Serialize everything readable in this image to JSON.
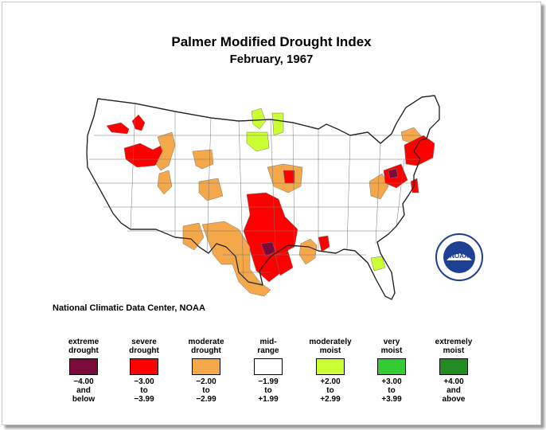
{
  "title": "Palmer Modified Drought Index",
  "subtitle": "February, 1967",
  "credit": "National Climatic Data Center, NOAA",
  "logo_text": "NOAA",
  "colors": {
    "extreme_drought": "#7a0a3a",
    "severe_drought": "#ff0000",
    "moderate_drought": "#f4a84a",
    "mid_range": "#ffffff",
    "moderately_moist": "#ccff33",
    "very_moist": "#33cc33",
    "extremely_moist": "#228b22",
    "boundary": "#777777",
    "outline": "#222222"
  },
  "legend": [
    {
      "label_1": "extreme",
      "label_2": "drought",
      "color": "#7a0a3a",
      "range_1": "−4.00",
      "range_2": "and",
      "range_3": "below"
    },
    {
      "label_1": "severe",
      "label_2": "drought",
      "color": "#ff0000",
      "range_1": "−3.00",
      "range_2": "to",
      "range_3": "−3.99"
    },
    {
      "label_1": "moderate",
      "label_2": "drought",
      "color": "#f4a84a",
      "range_1": "−2.00",
      "range_2": "to",
      "range_3": "−2.99"
    },
    {
      "label_1": "mid-",
      "label_2": "range",
      "color": "#ffffff",
      "range_1": "−1.99",
      "range_2": "to",
      "range_3": "+1.99"
    },
    {
      "label_1": "moderately",
      "label_2": "moist",
      "color": "#ccff33",
      "range_1": "+2.00",
      "range_2": "to",
      "range_3": "+2.99"
    },
    {
      "label_1": "very",
      "label_2": "moist",
      "color": "#33cc33",
      "range_1": "+3.00",
      "range_2": "to",
      "range_3": "+3.99"
    },
    {
      "label_1": "extremely",
      "label_2": "moist",
      "color": "#228b22",
      "range_1": "+4.00",
      "range_2": "and",
      "range_3": "above"
    }
  ],
  "regions": [
    {
      "name": "Northwest Washington",
      "category": "severe_drought"
    },
    {
      "name": "Northern Idaho",
      "category": "severe_drought"
    },
    {
      "name": "Southern Idaho / Eastern Oregon",
      "category": "severe_drought"
    },
    {
      "name": "Southwestern Montana / Wyoming",
      "category": "moderate_drought"
    },
    {
      "name": "Northeastern Montana",
      "category": "moderate_drought"
    },
    {
      "name": "Western Colorado / Utah",
      "category": "moderate_drought"
    },
    {
      "name": "Eastern North Dakota",
      "category": "moderately_moist"
    },
    {
      "name": "Northern Minnesota",
      "category": "moderately_moist"
    },
    {
      "name": "Iowa / Nebraska",
      "category": "moderate_drought"
    },
    {
      "name": "Eastern Iowa",
      "category": "severe_drought"
    },
    {
      "name": "Kansas / Oklahoma",
      "category": "severe_drought"
    },
    {
      "name": "Central Oklahoma",
      "category": "extreme_drought"
    },
    {
      "name": "North Texas",
      "category": "severe_drought"
    },
    {
      "name": "New Mexico / West Texas",
      "category": "moderate_drought"
    },
    {
      "name": "Central Arizona",
      "category": "moderate_drought"
    },
    {
      "name": "Arkansas / Louisiana",
      "category": "moderate_drought"
    },
    {
      "name": "Mississippi",
      "category": "severe_drought"
    },
    {
      "name": "Eastern Georgia",
      "category": "moderately_moist"
    },
    {
      "name": "Southern New York",
      "category": "moderate_drought"
    },
    {
      "name": "Western Pennsylvania",
      "category": "moderate_drought"
    },
    {
      "name": "Central Pennsylvania",
      "category": "extreme_drought"
    },
    {
      "name": "Pennsylvania / Maryland",
      "category": "severe_drought"
    },
    {
      "name": "New England",
      "category": "severe_drought"
    },
    {
      "name": "New Jersey",
      "category": "severe_drought"
    }
  ]
}
